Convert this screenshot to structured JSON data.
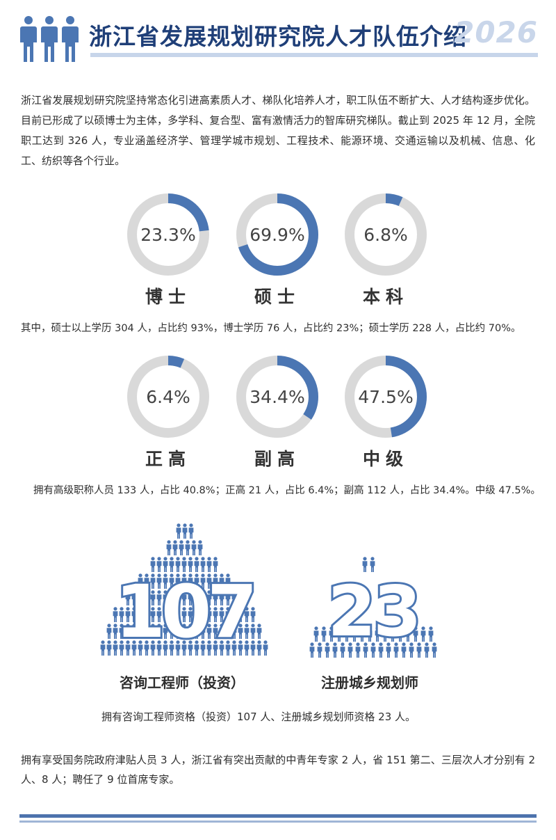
{
  "header": {
    "title": "浙江省发展规划研究院人才队伍介绍",
    "year": "2026",
    "icon": "people-icon"
  },
  "intro": "浙江省发展规划研究院坚持常态化引进高素质人才、梯队化培养人才，职工队伍不断扩大、人才结构逐步优化。目前已形成了以硕博士为主体，多学科、复合型、富有激情活力的智库研究梯队。截止到 2025 年 12 月，全院职工达到 326 人，专业涵盖经济学、管理学城市规划、工程技术、能源环境、交通运输以及机械、信息、化工、纺织等各个行业。",
  "education": [
    {
      "value": 23.3,
      "display": "23.3%",
      "label": "博士"
    },
    {
      "value": 69.9,
      "display": "69.9%",
      "label": "硕士"
    },
    {
      "value": 6.8,
      "display": "6.8%",
      "label": "本科"
    }
  ],
  "education_note": "其中，硕士以上学历 304 人，占比约 93%，博士学历 76 人，占比约 23%；硕士学历 228 人，占比约 70%。",
  "titles": [
    {
      "value": 6.4,
      "display": "6.4%",
      "label": "正高"
    },
    {
      "value": 34.4,
      "display": "34.4%",
      "label": "副高"
    },
    {
      "value": 47.5,
      "display": "47.5%",
      "label": "中级"
    }
  ],
  "titles_note": "拥有高级职称人员 133 人，占比 40.8%；正高 21 人，占比 6.4%；副高 112 人，占比 34.4%。中级 47.5%。",
  "certs": [
    {
      "number": "107",
      "label": "咨询工程师（投资）"
    },
    {
      "number": "23",
      "label": "注册城乡规划师"
    }
  ],
  "certs_note": "拥有咨询工程师资格（投资）107 人、注册城乡规划师资格 23 人。",
  "closing": "拥有享受国务院政府津贴人员 3 人，浙江省有突出贡献的中青年专家 2 人，省 151 第二、三层次人才分别有 2 人、8 人；聘任了 9 位首席专家。",
  "colors": {
    "accent": "#4b76b3",
    "track": "#d9d9d9",
    "title": "#1f3f78",
    "year": "#c9d6ea"
  }
}
